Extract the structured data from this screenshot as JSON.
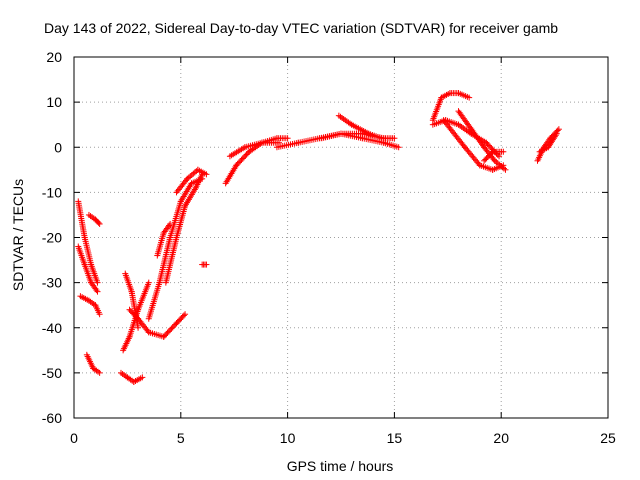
{
  "chart_data": {
    "type": "scatter",
    "title": "Day 143 of 2022, Sidereal Day-to-day VTEC variation (SDTVAR) for receiver gamb",
    "xlabel": "GPS time / hours",
    "ylabel": "SDTVAR / TECUs",
    "xlim": [
      0,
      25
    ],
    "ylim": [
      -60,
      20
    ],
    "xticks": [
      "0",
      "5",
      "10",
      "15",
      "20",
      "25"
    ],
    "yticks": [
      "-60",
      "-50",
      "-40",
      "-30",
      "-20",
      "-10",
      "0",
      "10",
      "20"
    ],
    "grid": true,
    "marker": "+",
    "color": "#ff0000",
    "segments": [
      {
        "name": "arc-a",
        "x": [
          0.2,
          0.5,
          0.8,
          1.1
        ],
        "y": [
          -12,
          -20,
          -26,
          -30
        ]
      },
      {
        "name": "arc-b",
        "x": [
          0.2,
          0.5,
          0.8,
          1.1
        ],
        "y": [
          -22,
          -26,
          -30,
          -32
        ]
      },
      {
        "name": "arc-c",
        "x": [
          0.7,
          1.0,
          1.2
        ],
        "y": [
          -15,
          -16,
          -17
        ]
      },
      {
        "name": "arc-d",
        "x": [
          0.3,
          0.7,
          1.0,
          1.2
        ],
        "y": [
          -33,
          -34,
          -35,
          -37
        ]
      },
      {
        "name": "arc-e",
        "x": [
          0.6,
          0.9,
          1.2
        ],
        "y": [
          -46,
          -49,
          -50
        ]
      },
      {
        "name": "arc-f",
        "x": [
          2.2,
          2.5,
          2.8,
          3.2
        ],
        "y": [
          -50,
          -51,
          -52,
          -51
        ]
      },
      {
        "name": "arc-g",
        "x": [
          2.3,
          2.6,
          3.0,
          3.5
        ],
        "y": [
          -45,
          -42,
          -36,
          -30
        ]
      },
      {
        "name": "arc-h",
        "x": [
          2.4,
          2.7,
          3.0
        ],
        "y": [
          -28,
          -32,
          -40
        ]
      },
      {
        "name": "arc-i",
        "x": [
          2.6,
          3.0,
          3.5,
          4.2,
          4.8,
          5.2
        ],
        "y": [
          -36,
          -38,
          -41,
          -42,
          -39,
          -37
        ]
      },
      {
        "name": "arc-j",
        "x": [
          3.5,
          4.0,
          4.5,
          5.0,
          5.5,
          6.0
        ],
        "y": [
          -38,
          -30,
          -20,
          -12,
          -8,
          -7
        ]
      },
      {
        "name": "arc-k",
        "x": [
          4.3,
          4.8,
          5.2,
          5.7,
          6.0
        ],
        "y": [
          -30,
          -20,
          -13,
          -9,
          -6
        ]
      },
      {
        "name": "arc-l",
        "x": [
          4.8,
          5.3,
          5.8,
          6.2
        ],
        "y": [
          -10,
          -7,
          -5,
          -6
        ]
      },
      {
        "name": "arc-m",
        "x": [
          3.9,
          4.2,
          4.5
        ],
        "y": [
          -24,
          -19,
          -17
        ]
      },
      {
        "name": "arc-n",
        "x": [
          6.0,
          6.2
        ],
        "y": [
          -26,
          -26
        ]
      },
      {
        "name": "arc-o",
        "x": [
          7.1,
          7.6,
          8.2,
          8.8,
          9.5,
          10.0
        ],
        "y": [
          -8,
          -4,
          -1,
          1,
          2,
          2
        ]
      },
      {
        "name": "arc-p",
        "x": [
          7.3,
          8.0,
          8.8,
          9.6
        ],
        "y": [
          -2,
          0,
          1,
          1
        ]
      },
      {
        "name": "arc-q",
        "x": [
          9.5,
          10.5,
          11.5,
          12.5,
          13.5,
          14.5,
          15.2
        ],
        "y": [
          0,
          1,
          2,
          3,
          2,
          1,
          0
        ]
      },
      {
        "name": "arc-r",
        "x": [
          11.6,
          12.5,
          13.5,
          14.5,
          15.0
        ],
        "y": [
          2,
          3,
          3,
          2,
          2
        ]
      },
      {
        "name": "arc-s",
        "x": [
          12.4,
          13.0,
          13.8,
          14.4
        ],
        "y": [
          7,
          5,
          3,
          2
        ]
      },
      {
        "name": "arc-t",
        "x": [
          16.8,
          17.2,
          17.6,
          18.0,
          18.5
        ],
        "y": [
          6,
          11,
          12,
          12,
          11
        ]
      },
      {
        "name": "arc-u",
        "x": [
          16.8,
          17.4,
          18.0,
          18.6,
          19.3,
          19.9
        ],
        "y": [
          5,
          6,
          5,
          3,
          1,
          -2
        ]
      },
      {
        "name": "arc-v",
        "x": [
          18.0,
          18.6,
          19.2,
          19.7,
          20.2
        ],
        "y": [
          8,
          4,
          0,
          -3,
          -5
        ]
      },
      {
        "name": "arc-w",
        "x": [
          17.3,
          18.3,
          19.0,
          19.6,
          20.1
        ],
        "y": [
          6,
          0,
          -4,
          -5,
          -4
        ]
      },
      {
        "name": "arc-x",
        "x": [
          19.2,
          19.6,
          20.1
        ],
        "y": [
          -3,
          -1,
          -1
        ]
      },
      {
        "name": "arc-y",
        "x": [
          21.7,
          22.0,
          22.3,
          22.7
        ],
        "y": [
          -3,
          0,
          2,
          4
        ]
      },
      {
        "name": "arc-z",
        "x": [
          21.8,
          22.2,
          22.6
        ],
        "y": [
          -1,
          0,
          3
        ]
      }
    ]
  }
}
